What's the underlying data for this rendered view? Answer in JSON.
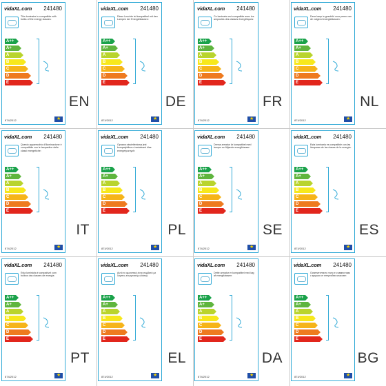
{
  "product_code": "241480",
  "logo_text": "vidaXL.com",
  "regulation": "874/2012",
  "bar_labels": [
    "A++",
    "A+",
    "A",
    "B",
    "C",
    "D",
    "E"
  ],
  "bar_colors": [
    "#1aa24a",
    "#5fb53e",
    "#b9d42d",
    "#f7e81c",
    "#f6b419",
    "#ee7a1f",
    "#e2261c"
  ],
  "labels": [
    {
      "lang": "EN",
      "text": "This luminaire is compatible with bulbs of the energy classes:"
    },
    {
      "lang": "DE",
      "text": "Diese Leuchte ist kompatibel mit den Lampen der Energieklassen:"
    },
    {
      "lang": "FR",
      "text": "Ce luminaire est compatible avec les ampoules des classes énergétiques:"
    },
    {
      "lang": "NL",
      "text": "Deze lamp is geschikt voor peren van de volgend energieklassen:"
    },
    {
      "lang": "IT",
      "text": "Questo apparecchio d'illuminazione è compatibile con le lampadine delle classi energetiche:"
    },
    {
      "lang": "PL",
      "text": "Oprawa oświetleniowa jest kompatybilna z żarówkami klas energetycznych:"
    },
    {
      "lang": "SE",
      "text": "Denna armatur är kompatibel med lampor av följande energiklasser:"
    },
    {
      "lang": "ES",
      "text": "Esta luminaria es compatible con las lámparas de las clases de la energía:"
    },
    {
      "lang": "PT",
      "text": "Esta luminária é compatível com bulbos das classes de energia:"
    },
    {
      "lang": "EL",
      "text": "Αυτό το φωτιστικό είναι συμβατό με λάμπες ενεργειακής κλάσης:"
    },
    {
      "lang": "DA",
      "text": "Dette armatur er kompatibel med løg af energiklassen:"
    },
    {
      "lang": "BG",
      "text": "Осветителното тяло е съвместимо с крушки от енергийни класове:"
    }
  ]
}
